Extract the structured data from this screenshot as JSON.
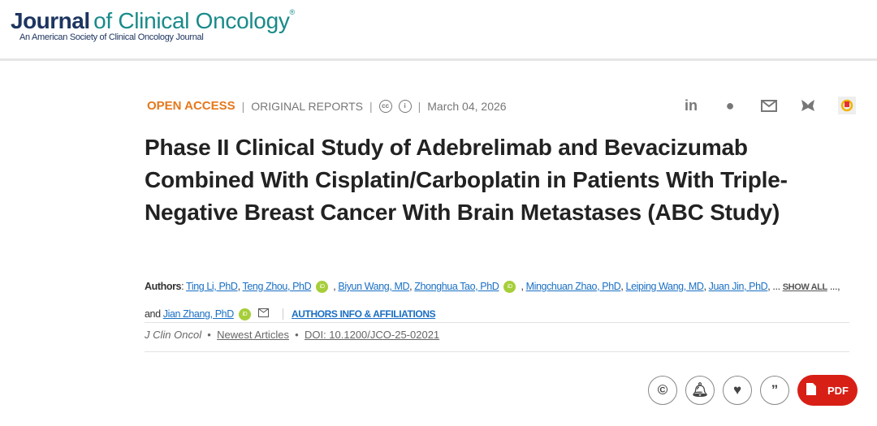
{
  "header": {
    "logo_bold": "Journal",
    "logo_rest": "of Clinical Oncology",
    "logo_reg": "®",
    "logo_sub": "An American Society of Clinical Oncology Journal"
  },
  "meta": {
    "access": "OPEN ACCESS",
    "type": "ORIGINAL REPORTS",
    "cc": "cc",
    "by": "i",
    "date": "March 04, 2026"
  },
  "share": {
    "icons": [
      "linkedin-icon",
      "wechat-icon",
      "email-icon",
      "bluesky-icon",
      "mendeley-icon"
    ]
  },
  "title": "Phase II Clinical Study of Adebrelimab and Bevacizumab Combined With Cisplatin/Carboplatin in Patients With Triple-Negative Breast Cancer With Brain Metastases (ABC Study)",
  "authors": {
    "label": "Authors",
    "list": [
      "Ting Li, PhD",
      "Teng Zhou, PhD",
      "Biyun Wang, MD",
      "Zhonghua Tao, PhD",
      "Mingchuan Zhao, PhD",
      "Leiping Wang, MD",
      "Juan Jin, PhD"
    ],
    "show_all": "SHOW ALL",
    "and": "..., and",
    "last": "Jian Zhang, PhD",
    "affiliations": "AUTHORS INFO & AFFILIATIONS",
    "orcid": "iD"
  },
  "citation": {
    "journal": "J Clin Oncol",
    "section": "Newest Articles",
    "doi": "DOI: 10.1200/JCO-25-02021"
  },
  "actions": {
    "pdf": "PDF"
  },
  "colors": {
    "accent": "#e5781c",
    "link": "#1a6fc4",
    "pdf": "#d71f16"
  }
}
